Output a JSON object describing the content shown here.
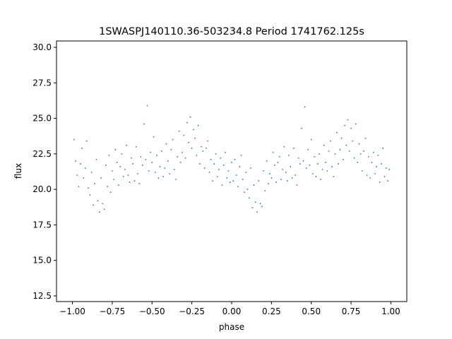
{
  "chart_data": {
    "type": "scatter",
    "title": "1SWASPJ140110.36-503234.8 Period 1741762.125s",
    "xlabel": "phase",
    "ylabel": "flux",
    "xlim": [
      -1.1,
      1.1
    ],
    "ylim": [
      12.1,
      30.45
    ],
    "grid": false,
    "legend": "none",
    "point_color": "#1f77b4",
    "xticks": [
      -1.0,
      -0.75,
      -0.5,
      -0.25,
      0.0,
      0.25,
      0.5,
      0.75,
      1.0
    ],
    "xtick_labels": [
      "−1.00",
      "−0.75",
      "−0.50",
      "−0.25",
      "0.00",
      "0.25",
      "0.50",
      "0.75",
      "1.00"
    ],
    "yticks": [
      12.5,
      15.0,
      17.5,
      20.0,
      22.5,
      25.0,
      27.5,
      30.0
    ],
    "ytick_labels": [
      "12.5",
      "15.0",
      "17.5",
      "20.0",
      "22.5",
      "25.0",
      "27.5",
      "30.0"
    ],
    "series": [
      {
        "points": [
          [
            -0.99,
            23.5
          ],
          [
            -0.98,
            22.0
          ],
          [
            -0.97,
            21.0
          ],
          [
            -0.96,
            20.2
          ],
          [
            -0.95,
            21.8
          ],
          [
            -0.94,
            22.9
          ],
          [
            -0.93,
            20.8
          ],
          [
            -0.92,
            21.5
          ],
          [
            -0.91,
            23.4
          ],
          [
            -0.9,
            20.1
          ],
          [
            -0.89,
            19.6
          ],
          [
            -0.88,
            21.2
          ],
          [
            -0.87,
            18.9
          ],
          [
            -0.86,
            20.4
          ],
          [
            -0.85,
            22.1
          ],
          [
            -0.84,
            19.2
          ],
          [
            -0.83,
            18.4
          ],
          [
            -0.82,
            20.8
          ],
          [
            -0.81,
            19.0
          ],
          [
            -0.8,
            18.6
          ],
          [
            -0.79,
            21.7
          ],
          [
            -0.78,
            20.2
          ],
          [
            -0.77,
            22.4
          ],
          [
            -0.76,
            19.8
          ],
          [
            -0.75,
            21.3
          ],
          [
            -0.74,
            20.7
          ],
          [
            -0.73,
            22.8
          ],
          [
            -0.72,
            21.9
          ],
          [
            -0.71,
            20.3
          ],
          [
            -0.7,
            21.6
          ],
          [
            -0.69,
            22.5
          ],
          [
            -0.68,
            20.9
          ],
          [
            -0.67,
            21.4
          ],
          [
            -0.66,
            23.1
          ],
          [
            -0.65,
            21.0
          ],
          [
            -0.64,
            20.5
          ],
          [
            -0.63,
            22.2
          ],
          [
            -0.62,
            21.8
          ],
          [
            -0.61,
            20.6
          ],
          [
            -0.6,
            23.0
          ],
          [
            -0.59,
            21.1
          ],
          [
            -0.58,
            20.4
          ],
          [
            -0.57,
            22.3
          ],
          [
            -0.56,
            21.7
          ],
          [
            -0.55,
            24.6
          ],
          [
            -0.54,
            22.1
          ],
          [
            -0.53,
            25.9
          ],
          [
            -0.52,
            21.3
          ],
          [
            -0.51,
            22.6
          ],
          [
            -0.5,
            21.9
          ],
          [
            -0.49,
            23.7
          ],
          [
            -0.48,
            21.2
          ],
          [
            -0.47,
            22.4
          ],
          [
            -0.46,
            20.8
          ],
          [
            -0.45,
            21.6
          ],
          [
            -0.44,
            22.7
          ],
          [
            -0.43,
            20.9
          ],
          [
            -0.42,
            21.5
          ],
          [
            -0.41,
            23.2
          ],
          [
            -0.4,
            22.0
          ],
          [
            -0.39,
            21.1
          ],
          [
            -0.38,
            22.8
          ],
          [
            -0.37,
            23.5
          ],
          [
            -0.36,
            21.4
          ],
          [
            -0.35,
            20.7
          ],
          [
            -0.34,
            22.3
          ],
          [
            -0.33,
            24.1
          ],
          [
            -0.32,
            21.9
          ],
          [
            -0.31,
            22.6
          ],
          [
            -0.3,
            23.8
          ],
          [
            -0.29,
            22.2
          ],
          [
            -0.28,
            24.7
          ],
          [
            -0.27,
            23.3
          ],
          [
            -0.26,
            25.1
          ],
          [
            -0.25,
            22.9
          ],
          [
            -0.24,
            24.2
          ],
          [
            -0.23,
            23.6
          ],
          [
            -0.22,
            22.4
          ],
          [
            -0.21,
            24.5
          ],
          [
            -0.2,
            21.8
          ],
          [
            -0.19,
            23.0
          ],
          [
            -0.18,
            22.7
          ],
          [
            -0.17,
            21.5
          ],
          [
            -0.16,
            22.9
          ],
          [
            -0.15,
            23.4
          ],
          [
            -0.14,
            21.2
          ],
          [
            -0.13,
            22.1
          ],
          [
            -0.12,
            20.6
          ],
          [
            -0.11,
            21.8
          ],
          [
            -0.1,
            22.5
          ],
          [
            -0.09,
            20.9
          ],
          [
            -0.08,
            21.4
          ],
          [
            -0.07,
            22.2
          ],
          [
            -0.06,
            20.3
          ],
          [
            -0.05,
            21.7
          ],
          [
            -0.04,
            22.6
          ],
          [
            -0.03,
            20.8
          ],
          [
            -0.02,
            21.3
          ],
          [
            -0.01,
            20.5
          ],
          [
            0.0,
            21.9
          ],
          [
            0.01,
            20.6
          ],
          [
            0.02,
            22.1
          ],
          [
            0.03,
            21.0
          ],
          [
            0.04,
            20.2
          ],
          [
            0.05,
            21.6
          ],
          [
            0.06,
            22.4
          ],
          [
            0.07,
            20.7
          ],
          [
            0.08,
            19.8
          ],
          [
            0.09,
            21.2
          ],
          [
            0.1,
            20.0
          ],
          [
            0.11,
            19.4
          ],
          [
            0.12,
            21.5
          ],
          [
            0.13,
            18.7
          ],
          [
            0.14,
            20.3
          ],
          [
            0.15,
            19.1
          ],
          [
            0.16,
            18.4
          ],
          [
            0.17,
            20.6
          ],
          [
            0.18,
            19.0
          ],
          [
            0.19,
            18.8
          ],
          [
            0.2,
            21.3
          ],
          [
            0.21,
            19.9
          ],
          [
            0.22,
            22.0
          ],
          [
            0.23,
            20.4
          ],
          [
            0.24,
            21.1
          ],
          [
            0.25,
            20.8
          ],
          [
            0.26,
            22.6
          ],
          [
            0.27,
            21.7
          ],
          [
            0.28,
            20.5
          ],
          [
            0.29,
            21.9
          ],
          [
            0.3,
            22.3
          ],
          [
            0.31,
            20.7
          ],
          [
            0.32,
            21.4
          ],
          [
            0.33,
            23.0
          ],
          [
            0.34,
            21.2
          ],
          [
            0.35,
            20.6
          ],
          [
            0.36,
            22.4
          ],
          [
            0.37,
            21.6
          ],
          [
            0.38,
            20.8
          ],
          [
            0.39,
            22.9
          ],
          [
            0.4,
            21.0
          ],
          [
            0.41,
            20.3
          ],
          [
            0.42,
            22.2
          ],
          [
            0.43,
            21.8
          ],
          [
            0.44,
            24.3
          ],
          [
            0.45,
            22.0
          ],
          [
            0.46,
            25.8
          ],
          [
            0.47,
            21.5
          ],
          [
            0.48,
            22.8
          ],
          [
            0.49,
            21.7
          ],
          [
            0.5,
            23.5
          ],
          [
            0.51,
            21.1
          ],
          [
            0.52,
            22.3
          ],
          [
            0.53,
            20.9
          ],
          [
            0.54,
            21.8
          ],
          [
            0.55,
            22.5
          ],
          [
            0.56,
            20.7
          ],
          [
            0.57,
            21.4
          ],
          [
            0.58,
            23.1
          ],
          [
            0.59,
            21.9
          ],
          [
            0.6,
            21.3
          ],
          [
            0.61,
            22.7
          ],
          [
            0.62,
            23.4
          ],
          [
            0.63,
            21.6
          ],
          [
            0.64,
            20.9
          ],
          [
            0.65,
            22.5
          ],
          [
            0.66,
            24.0
          ],
          [
            0.67,
            21.8
          ],
          [
            0.68,
            22.8
          ],
          [
            0.69,
            23.6
          ],
          [
            0.7,
            22.1
          ],
          [
            0.71,
            24.5
          ],
          [
            0.72,
            23.1
          ],
          [
            0.73,
            24.9
          ],
          [
            0.74,
            22.7
          ],
          [
            0.75,
            24.3
          ],
          [
            0.76,
            23.4
          ],
          [
            0.77,
            22.2
          ],
          [
            0.78,
            24.6
          ],
          [
            0.79,
            21.9
          ],
          [
            0.8,
            23.2
          ],
          [
            0.81,
            22.5
          ],
          [
            0.82,
            21.3
          ],
          [
            0.83,
            22.7
          ],
          [
            0.84,
            23.6
          ],
          [
            0.85,
            21.0
          ],
          [
            0.86,
            22.3
          ],
          [
            0.87,
            20.8
          ],
          [
            0.88,
            21.9
          ],
          [
            0.89,
            22.6
          ],
          [
            0.9,
            21.1
          ],
          [
            0.91,
            21.6
          ],
          [
            0.92,
            22.4
          ],
          [
            0.93,
            20.5
          ],
          [
            0.94,
            21.8
          ],
          [
            0.95,
            22.9
          ],
          [
            0.96,
            20.9
          ],
          [
            0.97,
            21.5
          ],
          [
            0.98,
            20.6
          ],
          [
            0.99,
            21.4
          ]
        ]
      }
    ]
  }
}
